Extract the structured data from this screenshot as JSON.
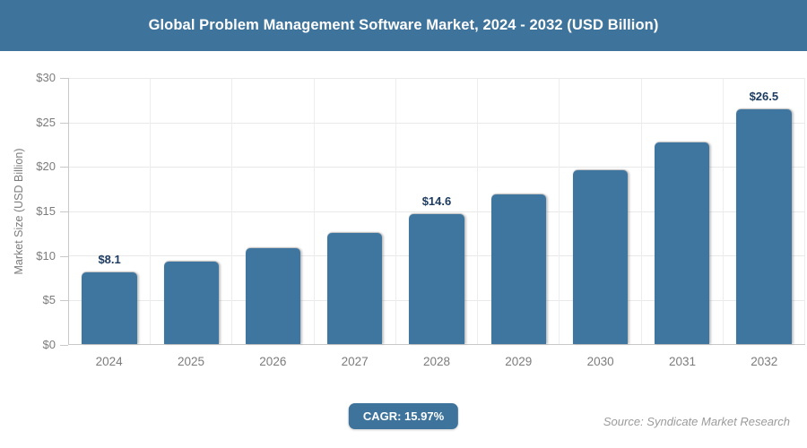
{
  "header": {
    "title": "Global Problem Management Software Market, 2024 - 2032 (USD Billion)"
  },
  "chart_data": {
    "type": "bar",
    "title": "Global Problem Management Software Market, 2024 - 2032 (USD Billion)",
    "categories": [
      "2024",
      "2025",
      "2026",
      "2027",
      "2028",
      "2029",
      "2030",
      "2031",
      "2032"
    ],
    "values": [
      8.1,
      9.3,
      10.8,
      12.5,
      14.6,
      16.9,
      19.6,
      22.7,
      26.5
    ],
    "value_labels": [
      "$8.1",
      "",
      "",
      "",
      "$14.6",
      "",
      "",
      "",
      "$26.5"
    ],
    "xlabel": "",
    "ylabel": "Market Size (USD Billion)",
    "ylim": [
      0,
      30
    ],
    "y_tick_step": 5,
    "y_tick_labels_top_to_bottom": [
      "$30",
      "$25",
      "$20",
      "$15",
      "$10",
      "$5",
      "$0"
    ],
    "grid": true,
    "legend": "none",
    "bar_color": "#3e76a0"
  },
  "footer": {
    "cagr_label": "CAGR: 15.97%",
    "source": "Source: Syndicate Market Research"
  },
  "colors": {
    "title_bar_bg": "#3e739b",
    "bar": "#3e76a0",
    "badge_bg": "#3e739b",
    "value_label_text": "#1b3a5f",
    "axis_text": "#7c7c7c",
    "gridline": "#e9e9e9",
    "axis_line": "#c9c9c9",
    "source_text": "#9b9b9b",
    "title_text": "#ffffff"
  }
}
